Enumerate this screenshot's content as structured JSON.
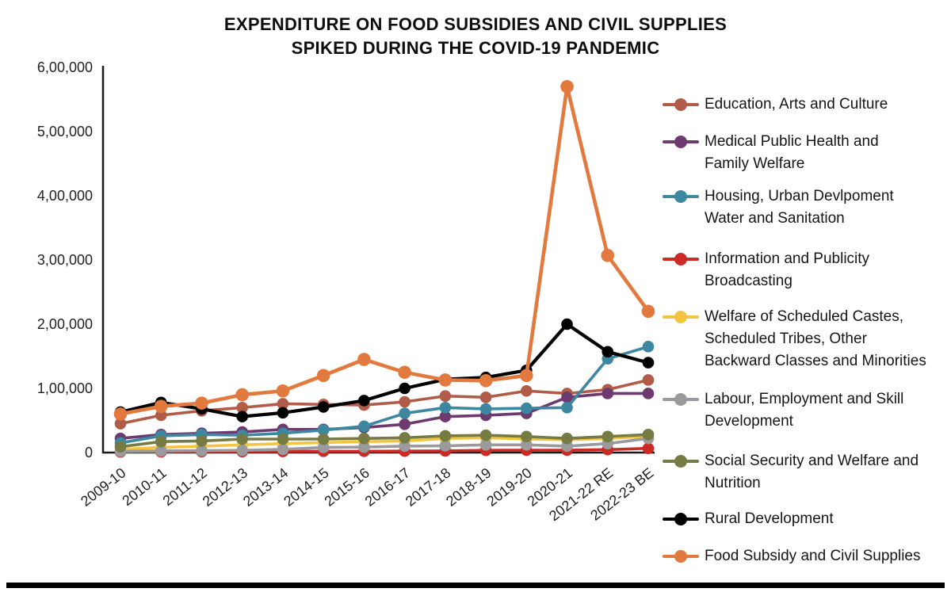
{
  "title": {
    "line1": "EXPENDITURE ON FOOD SUBSIDIES AND CIVIL SUPPLIES",
    "line2": "SPIKED DURING THE COVID-19 PANDEMIC"
  },
  "chart_data": {
    "type": "line",
    "title": "EXPENDITURE ON FOOD SUBSIDIES AND CIVIL SUPPLIES SPIKED DURING THE COVID-19 PANDEMIC",
    "xlabel": "",
    "ylabel": "",
    "ylim": [
      0,
      600000
    ],
    "grid": false,
    "legend_position": "right",
    "x_categories": [
      "2009-10",
      "2010-11",
      "2011-12",
      "2012-13",
      "2013-14",
      "2014-15",
      "2015-16",
      "2016-17",
      "2017-18",
      "2018-19",
      "2019-20",
      "2020-21",
      "2021-22 RE",
      "2022-23 BE"
    ],
    "y_ticks": [
      {
        "label": "6,00,000",
        "value": 600000
      },
      {
        "label": "5,00,000",
        "value": 500000
      },
      {
        "label": "4,00,000",
        "value": 400000
      },
      {
        "label": "3,00,000",
        "value": 300000
      },
      {
        "label": "2,00,000",
        "value": 200000
      },
      {
        "label": "1,00,000",
        "value": 100000
      },
      {
        "label": "0",
        "value": 0
      }
    ],
    "series": [
      {
        "name": "Education, Arts and Culture",
        "color": "#b05c48",
        "legend_lines": [
          "Education, Arts and Culture"
        ],
        "values": [
          45000,
          58000,
          65000,
          70000,
          76000,
          75000,
          74000,
          79000,
          88000,
          86000,
          96000,
          92000,
          98000,
          113000
        ]
      },
      {
        "name": "Medical Public Health and Family Welfare",
        "color": "#6d3a70",
        "legend_lines": [
          "Medical Public Health and",
          "Family Welfare"
        ],
        "values": [
          22000,
          28000,
          30000,
          32000,
          36000,
          36000,
          39000,
          44000,
          56000,
          58000,
          61000,
          86000,
          92000,
          92000
        ]
      },
      {
        "name": "Housing, Urban Devlpoment Water and Sanitation",
        "color": "#3d87a0",
        "legend_lines": [
          "Housing, Urban Devlpoment",
          "Water and Sanitation"
        ],
        "values": [
          15000,
          26000,
          28000,
          27000,
          30000,
          35000,
          41000,
          61000,
          70000,
          68000,
          69000,
          70000,
          146000,
          165000
        ]
      },
      {
        "name": "Information and Publicity Broadcasting",
        "color": "#cc2a24",
        "legend_lines": [
          "Information and Publicity",
          "Broadcasting"
        ],
        "values": [
          1000,
          1200,
          1500,
          1500,
          1800,
          2000,
          2000,
          2200,
          2500,
          3500,
          3700,
          3700,
          4600,
          6500
        ]
      },
      {
        "name": "Welfare of Scheduled Castes, Scheduled Tribes, Other Backward Classes and Minorities",
        "color": "#f2c440",
        "legend_lines": [
          "Welfare of Scheduled Castes,",
          "Scheduled Tribes, Other",
          "Backward Classes and Minorities"
        ],
        "values": [
          5000,
          8000,
          10000,
          12000,
          14000,
          15500,
          17000,
          18000,
          22000,
          23000,
          21000,
          20000,
          22000,
          25000
        ]
      },
      {
        "name": "Labour, Employment and Skill Development",
        "color": "#9a9a9c",
        "legend_lines": [
          "Labour, Employment and Skill",
          "Development"
        ],
        "values": [
          2000,
          2500,
          3000,
          3500,
          5000,
          8000,
          8500,
          10000,
          10500,
          12000,
          12000,
          10000,
          14000,
          22000
        ]
      },
      {
        "name": "Social Security and Welfare and Nutrition",
        "color": "#767a43",
        "legend_lines": [
          "Social Security and Welfare and",
          "Nutrition"
        ],
        "values": [
          9000,
          17000,
          18000,
          21000,
          21000,
          21000,
          22000,
          23000,
          26000,
          27000,
          25000,
          22000,
          25000,
          28000
        ]
      },
      {
        "name": "Rural Development",
        "color": "#000000",
        "legend_lines": [
          "Rural Development"
        ],
        "values": [
          63000,
          78000,
          68000,
          56000,
          62000,
          71000,
          81000,
          100000,
          114000,
          117000,
          128000,
          200000,
          157000,
          140000
        ]
      },
      {
        "name": "Food Subsidy and Civil Supplies",
        "color": "#e2793e",
        "legend_lines": [
          "Food Subsidy and Civil Supplies"
        ],
        "values": [
          60000,
          72000,
          77000,
          90000,
          96000,
          120000,
          145000,
          125000,
          113000,
          112000,
          120000,
          570000,
          307000,
          220000
        ]
      }
    ]
  }
}
